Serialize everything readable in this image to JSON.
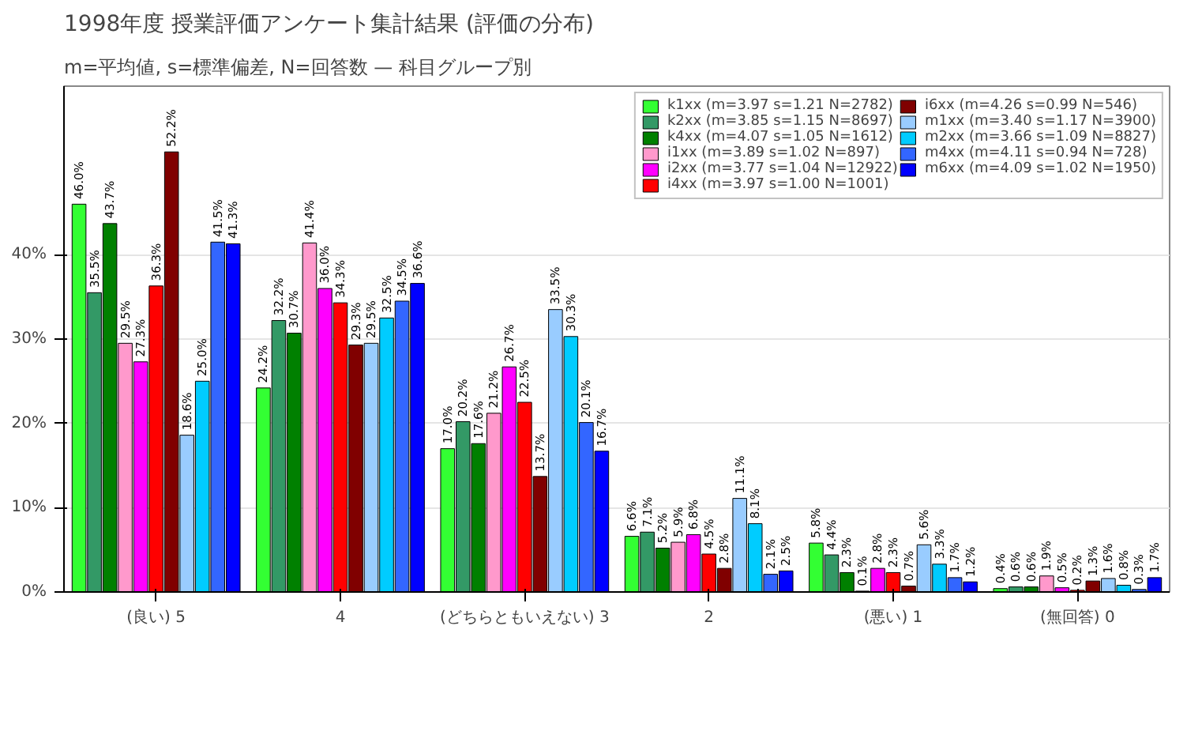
{
  "chart_data": {
    "type": "bar",
    "title": "1998年度 授業評価アンケート集計結果 (評価の分布)",
    "subtitle": "m=平均値, s=標準偏差, N=回答数 — 科目グループ別",
    "categories": [
      "(良い) 5",
      "4",
      "(どちらともいえない) 3",
      "2",
      "(悪い) 1",
      "(無回答) 0"
    ],
    "series": [
      {
        "name": "k1xx (m=3.97 s=1.21 N=2782)",
        "color": "#33ff33",
        "values": [
          46.0,
          24.2,
          17.0,
          6.6,
          5.8,
          0.4
        ],
        "value_labels": [
          "46.0%",
          "24.2%",
          "17.0%",
          "6.6%",
          "5.8%",
          "0.4%"
        ]
      },
      {
        "name": "k2xx (m=3.85 s=1.15 N=8697)",
        "color": "#339966",
        "values": [
          35.5,
          32.2,
          20.2,
          7.1,
          4.4,
          0.6
        ],
        "value_labels": [
          "35.5%",
          "32.2%",
          "20.2%",
          "7.1%",
          "4.4%",
          "0.6%"
        ]
      },
      {
        "name": "k4xx (m=4.07 s=1.05 N=1612)",
        "color": "#008000",
        "values": [
          43.7,
          30.7,
          17.6,
          5.2,
          2.3,
          0.6
        ],
        "value_labels": [
          "43.7%",
          "30.7%",
          "17.6%",
          "5.2%",
          "2.3%",
          "0.6%"
        ]
      },
      {
        "name": "i1xx (m=3.89 s=1.02 N=897)",
        "color": "#ff99cc",
        "values": [
          29.5,
          41.4,
          21.2,
          5.9,
          0.1,
          1.9
        ],
        "value_labels": [
          "29.5%",
          "41.4%",
          "21.2%",
          "5.9%",
          "0.1%",
          "1.9%"
        ]
      },
      {
        "name": "i2xx (m=3.77 s=1.04 N=12922)",
        "color": "#ff00ff",
        "values": [
          27.3,
          36.0,
          26.7,
          6.8,
          2.8,
          0.5
        ],
        "value_labels": [
          "27.3%",
          "36.0%",
          "26.7%",
          "6.8%",
          "2.8%",
          "0.5%"
        ]
      },
      {
        "name": "i4xx (m=3.97 s=1.00 N=1001)",
        "color": "#ff0000",
        "values": [
          36.3,
          34.3,
          22.5,
          4.5,
          2.3,
          0.2
        ],
        "value_labels": [
          "36.3%",
          "34.3%",
          "22.5%",
          "4.5%",
          "2.3%",
          "0.2%"
        ]
      },
      {
        "name": "i6xx (m=4.26 s=0.99 N=546)",
        "color": "#800000",
        "values": [
          52.2,
          29.3,
          13.7,
          2.8,
          0.7,
          1.3
        ],
        "value_labels": [
          "52.2%",
          "29.3%",
          "13.7%",
          "2.8%",
          "0.7%",
          "1.3%"
        ]
      },
      {
        "name": "m1xx (m=3.40 s=1.17 N=3900)",
        "color": "#99ccff",
        "values": [
          18.6,
          29.5,
          33.5,
          11.1,
          5.6,
          1.6
        ],
        "value_labels": [
          "18.6%",
          "29.5%",
          "33.5%",
          "11.1%",
          "5.6%",
          "1.6%"
        ]
      },
      {
        "name": "m2xx (m=3.66 s=1.09 N=8827)",
        "color": "#00ccff",
        "values": [
          25.0,
          32.5,
          30.3,
          8.1,
          3.3,
          0.8
        ],
        "value_labels": [
          "25.0%",
          "32.5%",
          "30.3%",
          "8.1%",
          "3.3%",
          "0.8%"
        ]
      },
      {
        "name": "m4xx (m=4.11 s=0.94 N=728)",
        "color": "#3366ff",
        "values": [
          41.5,
          34.5,
          20.1,
          2.1,
          1.7,
          0.3
        ],
        "value_labels": [
          "41.5%",
          "34.5%",
          "20.1%",
          "2.1%",
          "1.7%",
          "0.3%"
        ]
      },
      {
        "name": "m6xx (m=4.09 s=1.02 N=1950)",
        "color": "#0000ff",
        "values": [
          41.3,
          36.6,
          16.7,
          2.5,
          1.2,
          1.7
        ],
        "value_labels": [
          "41.3%",
          "36.6%",
          "16.7%",
          "2.5%",
          "1.2%",
          "1.7%"
        ]
      }
    ],
    "ylim": [
      0,
      60
    ],
    "yticks": [
      {
        "value": 0,
        "label": "0%"
      },
      {
        "value": 10,
        "label": "10%"
      },
      {
        "value": 20,
        "label": "20%"
      },
      {
        "value": 30,
        "label": "30%"
      },
      {
        "value": 40,
        "label": "40%"
      }
    ],
    "grid": "y",
    "legend": "top right"
  }
}
